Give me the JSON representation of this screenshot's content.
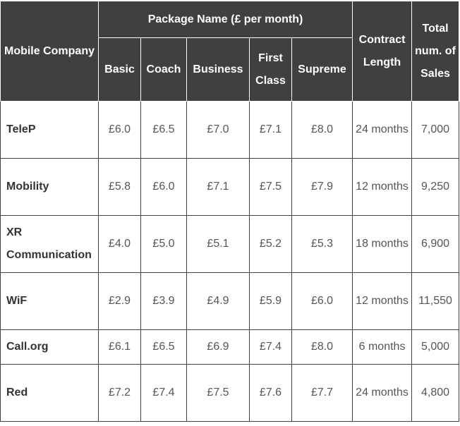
{
  "headers": {
    "company": "Mobile Company",
    "package_group": "Package Name (£ per month)",
    "packages": [
      "Basic",
      "Coach",
      "Business",
      "First Class",
      "Supreme"
    ],
    "contract": "Contract Length",
    "total": "Total num. of Sales"
  },
  "rows": [
    {
      "company": "TeleP",
      "prices": [
        "£6.0",
        "£6.5",
        "£7.0",
        "£7.1",
        "£8.0"
      ],
      "contract": "24 months",
      "sales": "7,000"
    },
    {
      "company": "Mobility",
      "prices": [
        "£5.8",
        "£6.0",
        "£7.1",
        "£7.5",
        "£7.9"
      ],
      "contract": "12 months",
      "sales": "9,250"
    },
    {
      "company": "XR Communication",
      "prices": [
        "£4.0",
        "£5.0",
        "£5.1",
        "£5.2",
        "£5.3"
      ],
      "contract": "18 months",
      "sales": "6,900"
    },
    {
      "company": "WiF",
      "prices": [
        "£2.9",
        "£3.9",
        "£4.9",
        "£5.9",
        "£6.0"
      ],
      "contract": "12 months",
      "sales": "11,550"
    },
    {
      "company": "Call.org",
      "prices": [
        "£6.1",
        "£6.5",
        "£6.9",
        "£7.4",
        "£8.0"
      ],
      "contract": "6 months",
      "sales": "5,000"
    },
    {
      "company": "Red",
      "prices": [
        "£7.2",
        "£7.4",
        "£7.5",
        "£7.6",
        "£7.7"
      ],
      "contract": "24 months",
      "sales": "4,800"
    }
  ]
}
